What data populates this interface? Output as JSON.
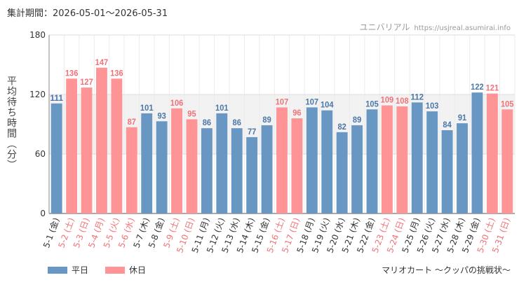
{
  "header": {
    "period": "集計期間：2026-05-01～2026-05-31",
    "site_name": "ユニバリアル",
    "site_url": "https://usjreal.asumirai.info"
  },
  "footer": {
    "attraction_name": "マリオカート ～クッパの挑戦状～"
  },
  "colors": {
    "weekday": "#6897c4",
    "holiday": "#ff9496",
    "weekday_label": "#4a77a8",
    "holiday_label": "#f07277",
    "band": "#f2f2f2"
  },
  "chart_data": {
    "type": "bar",
    "ylabel": "平均待ち時間（分）",
    "ylim": [
      0,
      180
    ],
    "yticks": [
      0,
      60,
      120,
      180
    ],
    "band": [
      60,
      120
    ],
    "grid": true,
    "legend_position": "bottom-left",
    "legend": [
      {
        "name": "平日",
        "kind": "weekday"
      },
      {
        "name": "休日",
        "kind": "holiday"
      }
    ],
    "categories": [
      "5-1 (金)",
      "5-2 (土)",
      "5-3 (日)",
      "5-4 (月)",
      "5-5 (火)",
      "5-6 (水)",
      "5-7 (木)",
      "5-8 (金)",
      "5-9 (土)",
      "5-10 (日)",
      "5-11 (月)",
      "5-12 (火)",
      "5-13 (水)",
      "5-14 (木)",
      "5-15 (金)",
      "5-16 (土)",
      "5-17 (日)",
      "5-18 (月)",
      "5-19 (火)",
      "5-20 (水)",
      "5-21 (木)",
      "5-22 (金)",
      "5-23 (土)",
      "5-24 (日)",
      "5-25 (月)",
      "5-26 (火)",
      "5-27 (水)",
      "5-28 (木)",
      "5-29 (金)",
      "5-30 (土)",
      "5-31 (日)"
    ],
    "values": [
      111,
      136,
      127,
      147,
      136,
      87,
      101,
      93,
      106,
      95,
      86,
      101,
      86,
      77,
      89,
      107,
      96,
      107,
      104,
      82,
      89,
      105,
      109,
      108,
      112,
      103,
      84,
      91,
      122,
      121,
      105
    ],
    "kinds": [
      "weekday",
      "holiday",
      "holiday",
      "holiday",
      "holiday",
      "holiday",
      "weekday",
      "weekday",
      "holiday",
      "holiday",
      "weekday",
      "weekday",
      "weekday",
      "weekday",
      "weekday",
      "holiday",
      "holiday",
      "weekday",
      "weekday",
      "weekday",
      "weekday",
      "weekday",
      "holiday",
      "holiday",
      "weekday",
      "weekday",
      "weekday",
      "weekday",
      "weekday",
      "holiday",
      "holiday"
    ]
  }
}
